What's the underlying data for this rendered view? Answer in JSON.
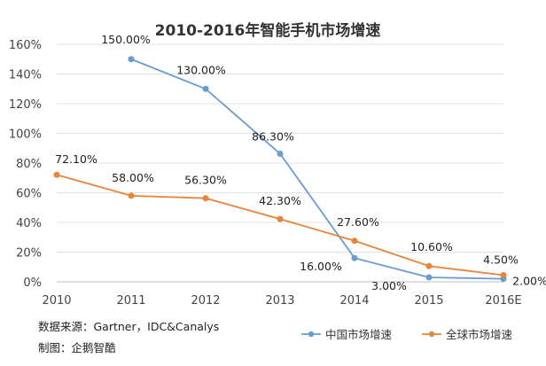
{
  "chart_data": {
    "type": "line",
    "title": "2010-2016年智能手机市场增速",
    "categories": [
      "2010",
      "2011",
      "2012",
      "2013",
      "2014",
      "2015",
      "2016E"
    ],
    "ylim": [
      0,
      160
    ],
    "yticks": [
      "0%",
      "20%",
      "40%",
      "60%",
      "80%",
      "100%",
      "120%",
      "140%",
      "160%"
    ],
    "series": [
      {
        "name": "中国市场增速",
        "color": "#6b9bd1",
        "values": [
          null,
          150.0,
          130.0,
          86.3,
          16.0,
          3.0,
          2.0
        ],
        "labels": [
          "",
          "150.00%",
          "130.00%",
          "86.30%",
          "16.00%",
          "3.00%",
          "2.00%"
        ]
      },
      {
        "name": "全球市场增速",
        "color": "#e8843b",
        "values": [
          72.1,
          58.0,
          56.3,
          42.3,
          27.6,
          10.6,
          4.5
        ],
        "labels": [
          "72.10%",
          "58.00%",
          "56.30%",
          "42.30%",
          "27.60%",
          "10.60%",
          "4.50%"
        ]
      }
    ]
  },
  "source_note": "数据来源：Gartner，IDC&Canalys",
  "credit_note": "制图：企鹅智酷"
}
